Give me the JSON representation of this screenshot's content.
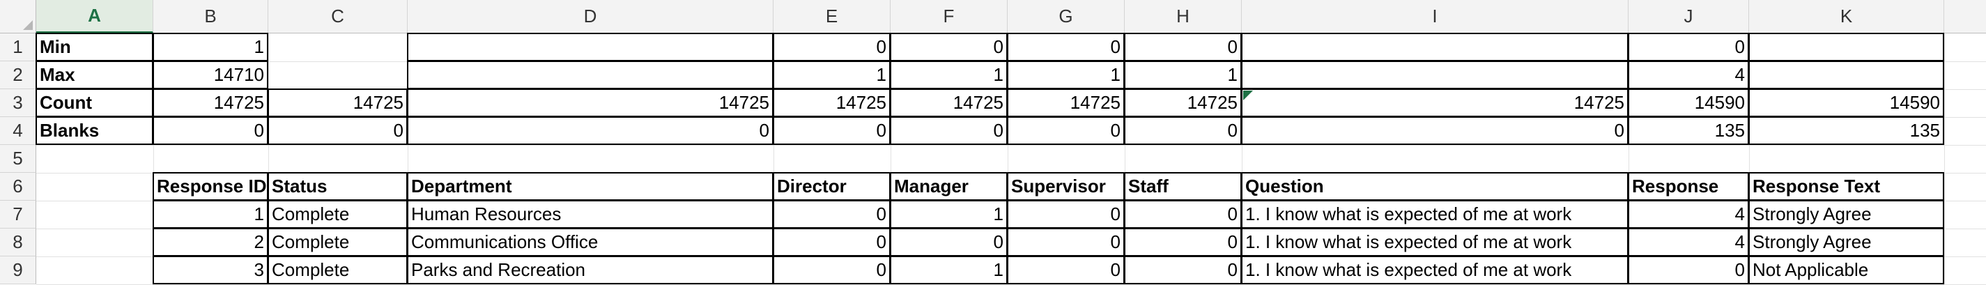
{
  "spreadsheet": {
    "column_headers": [
      "A",
      "B",
      "C",
      "D",
      "E",
      "F",
      "G",
      "H",
      "I",
      "J",
      "K"
    ],
    "selected_column": "A",
    "row_headers": [
      "1",
      "2",
      "3",
      "4",
      "5",
      "6",
      "7",
      "8",
      "9"
    ],
    "summary_rows": [
      {
        "label": "Min",
        "b": "1",
        "c": "",
        "d": "",
        "e": "0",
        "f": "0",
        "g": "0",
        "h": "0",
        "i": "",
        "j": "0",
        "k": ""
      },
      {
        "label": "Max",
        "b": "14710",
        "c": "",
        "d": "",
        "e": "1",
        "f": "1",
        "g": "1",
        "h": "1",
        "i": "",
        "j": "4",
        "k": ""
      },
      {
        "label": "Count",
        "b": "14725",
        "c": "14725",
        "d": "14725",
        "e": "14725",
        "f": "14725",
        "g": "14725",
        "h": "14725",
        "i": "14725",
        "j": "14590",
        "k": "14590"
      },
      {
        "label": "Blanks",
        "b": "0",
        "c": "0",
        "d": "0",
        "e": "0",
        "f": "0",
        "g": "0",
        "h": "0",
        "i": "0",
        "j": "135",
        "k": "135"
      }
    ],
    "table_headers": [
      "Response ID",
      "Status",
      "Department",
      "Director",
      "Manager",
      "Supervisor",
      "Staff",
      "Question",
      "Response",
      "Response Text"
    ],
    "table_rows": [
      [
        "1",
        "Complete",
        "Human Resources",
        "0",
        "1",
        "0",
        "0",
        "1. I know what is expected of me at work",
        "4",
        "Strongly Agree"
      ],
      [
        "2",
        "Complete",
        "Communications Office",
        "0",
        "0",
        "0",
        "0",
        "1. I know what is expected of me at work",
        "4",
        "Strongly Agree"
      ],
      [
        "3",
        "Complete",
        "Parks and Recreation",
        "0",
        "1",
        "0",
        "0",
        "1. I know what is expected of me at work",
        "0",
        "Not Applicable"
      ]
    ],
    "colors": {
      "accent": "#1e7145",
      "header_bg": "#f3f3f3",
      "gridline": "#e1e1e1"
    }
  }
}
